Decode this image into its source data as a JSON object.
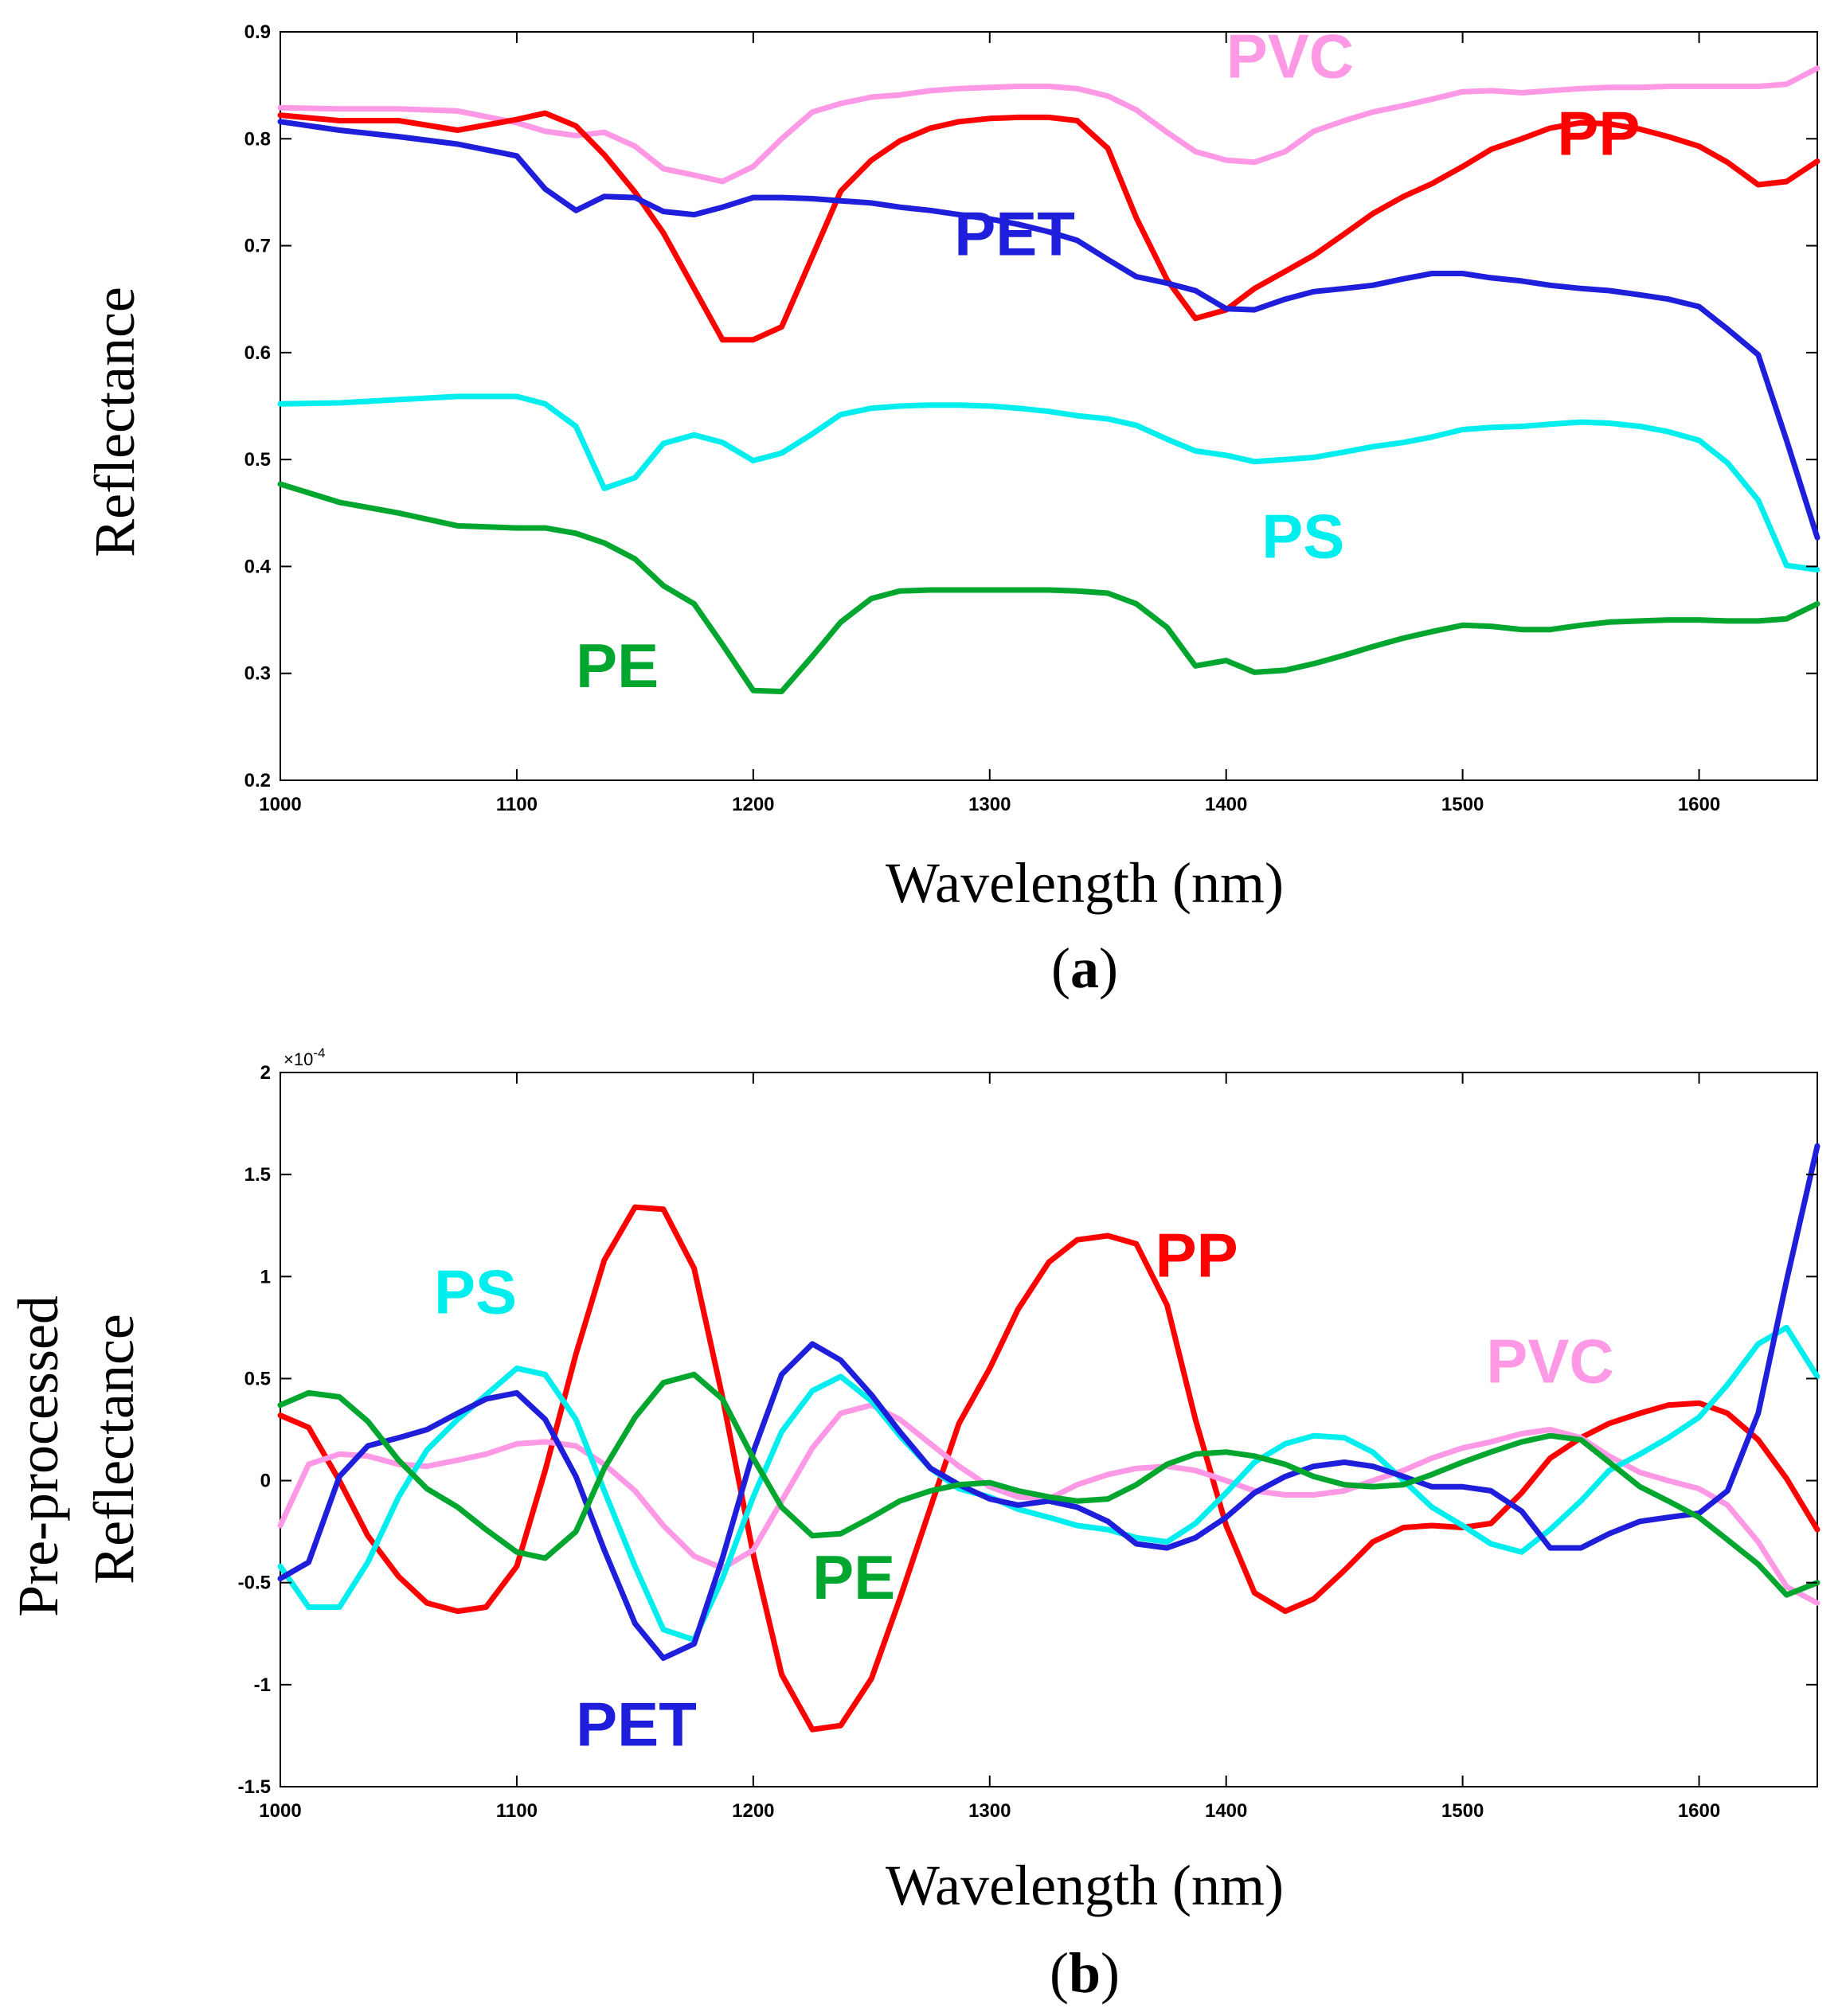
{
  "chart_data": [
    {
      "id": "a",
      "type": "line",
      "panel_label": "a",
      "xlabel": "Wavelength (nm)",
      "ylabel": "Reflectance",
      "xlim": [
        1000,
        1650
      ],
      "ylim": [
        0.2,
        0.9
      ],
      "xticks": [
        1000,
        1100,
        1200,
        1300,
        1400,
        1500,
        1600
      ],
      "yticks": [
        0.2,
        0.3,
        0.4,
        0.5,
        0.6,
        0.7,
        0.8,
        0.9
      ],
      "ytick_labels": [
        "0.2",
        "0.3",
        "0.4",
        "0.5",
        "0.6",
        "0.7",
        "0.8",
        "0.9"
      ],
      "x": [
        1000,
        1025,
        1050,
        1075,
        1100,
        1112,
        1125,
        1137,
        1150,
        1162,
        1175,
        1187,
        1200,
        1212,
        1225,
        1237,
        1250,
        1262,
        1275,
        1287,
        1300,
        1312,
        1325,
        1337,
        1350,
        1362,
        1375,
        1387,
        1400,
        1412,
        1425,
        1437,
        1450,
        1462,
        1475,
        1487,
        1500,
        1512,
        1525,
        1537,
        1550,
        1562,
        1575,
        1587,
        1600,
        1612,
        1625,
        1637,
        1650
      ],
      "series": [
        {
          "name": "PVC",
          "color": "#FF99E6",
          "label_pos": [
            1400,
            0.857
          ],
          "values": [
            0.829,
            0.828,
            0.828,
            0.826,
            0.815,
            0.807,
            0.803,
            0.806,
            0.793,
            0.772,
            0.766,
            0.76,
            0.774,
            0.8,
            0.825,
            0.833,
            0.839,
            0.841,
            0.845,
            0.847,
            0.848,
            0.849,
            0.849,
            0.847,
            0.84,
            0.827,
            0.806,
            0.788,
            0.78,
            0.778,
            0.788,
            0.807,
            0.817,
            0.825,
            0.831,
            0.837,
            0.844,
            0.845,
            0.843,
            0.845,
            0.847,
            0.848,
            0.848,
            0.849,
            0.849,
            0.849,
            0.849,
            0.851,
            0.866
          ]
        },
        {
          "name": "PP",
          "color": "#FF0000",
          "label_pos": [
            1540,
            0.785
          ],
          "values": [
            0.822,
            0.817,
            0.817,
            0.808,
            0.818,
            0.824,
            0.812,
            0.785,
            0.75,
            0.712,
            0.66,
            0.612,
            0.612,
            0.624,
            0.69,
            0.751,
            0.78,
            0.798,
            0.81,
            0.816,
            0.819,
            0.82,
            0.82,
            0.817,
            0.791,
            0.726,
            0.668,
            0.632,
            0.64,
            0.66,
            0.676,
            0.691,
            0.711,
            0.73,
            0.746,
            0.758,
            0.774,
            0.79,
            0.8,
            0.81,
            0.815,
            0.814,
            0.809,
            0.802,
            0.793,
            0.778,
            0.757,
            0.76,
            0.779
          ]
        },
        {
          "name": "PET",
          "color": "#1F1FDB",
          "label_pos": [
            1285,
            0.691
          ],
          "values": [
            0.816,
            0.808,
            0.802,
            0.795,
            0.784,
            0.753,
            0.733,
            0.746,
            0.745,
            0.732,
            0.729,
            0.736,
            0.745,
            0.745,
            0.744,
            0.742,
            0.74,
            0.736,
            0.733,
            0.729,
            0.725,
            0.72,
            0.713,
            0.705,
            0.687,
            0.671,
            0.665,
            0.658,
            0.641,
            0.64,
            0.65,
            0.657,
            0.66,
            0.663,
            0.669,
            0.674,
            0.674,
            0.67,
            0.667,
            0.663,
            0.66,
            0.658,
            0.654,
            0.65,
            0.643,
            0.622,
            0.598,
            0.518,
            0.427
          ]
        },
        {
          "name": "PS",
          "color": "#00EEEE",
          "label_pos": [
            1415,
            0.408
          ],
          "values": [
            0.552,
            0.553,
            0.556,
            0.559,
            0.559,
            0.552,
            0.531,
            0.473,
            0.483,
            0.515,
            0.523,
            0.516,
            0.499,
            0.506,
            0.524,
            0.542,
            0.548,
            0.55,
            0.551,
            0.551,
            0.55,
            0.548,
            0.545,
            0.541,
            0.538,
            0.532,
            0.519,
            0.508,
            0.504,
            0.498,
            0.5,
            0.502,
            0.507,
            0.512,
            0.516,
            0.521,
            0.528,
            0.53,
            0.531,
            0.533,
            0.535,
            0.534,
            0.531,
            0.526,
            0.518,
            0.497,
            0.462,
            0.401,
            0.397
          ]
        },
        {
          "name": "PE",
          "color": "#00A62E",
          "label_pos": [
            1125,
            0.287
          ],
          "values": [
            0.477,
            0.46,
            0.45,
            0.438,
            0.436,
            0.436,
            0.431,
            0.422,
            0.407,
            0.382,
            0.365,
            0.327,
            0.284,
            0.283,
            0.316,
            0.348,
            0.37,
            0.377,
            0.378,
            0.378,
            0.378,
            0.378,
            0.378,
            0.377,
            0.375,
            0.365,
            0.343,
            0.307,
            0.312,
            0.301,
            0.303,
            0.309,
            0.317,
            0.325,
            0.333,
            0.339,
            0.345,
            0.344,
            0.341,
            0.341,
            0.345,
            0.348,
            0.349,
            0.35,
            0.35,
            0.349,
            0.349,
            0.351,
            0.365
          ]
        }
      ]
    },
    {
      "id": "b",
      "type": "line",
      "panel_label": "b",
      "xlabel": "Wavelength (nm)",
      "ylabel_lines": [
        "Pre-processed",
        "Reflectance"
      ],
      "exponent": "×10",
      "exponent_power": "-4",
      "xlim": [
        1000,
        1650
      ],
      "ylim": [
        -1.5,
        2
      ],
      "xticks": [
        1000,
        1100,
        1200,
        1300,
        1400,
        1500,
        1600
      ],
      "yticks": [
        -1.5,
        -1,
        -0.5,
        0,
        0.5,
        1,
        1.5,
        2
      ],
      "ytick_labels": [
        "-1.5",
        "-1",
        "-0.5",
        "0",
        "0.5",
        "1",
        "1.5",
        "2"
      ],
      "x": [
        1000,
        1012,
        1025,
        1037,
        1050,
        1062,
        1075,
        1087,
        1100,
        1112,
        1125,
        1137,
        1150,
        1162,
        1175,
        1187,
        1200,
        1212,
        1225,
        1237,
        1250,
        1262,
        1275,
        1287,
        1300,
        1312,
        1325,
        1337,
        1350,
        1362,
        1375,
        1387,
        1400,
        1412,
        1425,
        1437,
        1450,
        1462,
        1475,
        1487,
        1500,
        1512,
        1525,
        1537,
        1550,
        1562,
        1575,
        1587,
        1600,
        1612,
        1625,
        1637,
        1650
      ],
      "series": [
        {
          "name": "PP",
          "color": "#FF0000",
          "label_pos": [
            1370,
            1.0
          ],
          "values": [
            0.32,
            0.26,
            0.0,
            -0.27,
            -0.47,
            -0.6,
            -0.64,
            -0.62,
            -0.42,
            0.05,
            0.62,
            1.08,
            1.34,
            1.33,
            1.04,
            0.41,
            -0.36,
            -0.95,
            -1.22,
            -1.2,
            -0.97,
            -0.58,
            -0.13,
            0.28,
            0.55,
            0.84,
            1.07,
            1.18,
            1.2,
            1.16,
            0.86,
            0.3,
            -0.22,
            -0.55,
            -0.64,
            -0.58,
            -0.44,
            -0.3,
            -0.23,
            -0.22,
            -0.23,
            -0.21,
            -0.06,
            0.11,
            0.21,
            0.28,
            0.33,
            0.37,
            0.38,
            0.33,
            0.2,
            0.01,
            -0.24
          ]
        },
        {
          "name": "PVC",
          "color": "#FF99E6",
          "label_pos": [
            1510,
            0.48
          ],
          "values": [
            -0.22,
            0.08,
            0.13,
            0.12,
            0.08,
            0.07,
            0.1,
            0.13,
            0.18,
            0.19,
            0.17,
            0.08,
            -0.05,
            -0.22,
            -0.37,
            -0.43,
            -0.34,
            -0.1,
            0.16,
            0.33,
            0.37,
            0.3,
            0.18,
            0.07,
            -0.03,
            -0.08,
            -0.09,
            -0.02,
            0.03,
            0.06,
            0.07,
            0.05,
            0.0,
            -0.05,
            -0.07,
            -0.07,
            -0.05,
            0.0,
            0.05,
            0.11,
            0.16,
            0.19,
            0.23,
            0.25,
            0.21,
            0.12,
            0.04,
            0.0,
            -0.04,
            -0.12,
            -0.3,
            -0.52,
            -0.6
          ]
        },
        {
          "name": "PS",
          "color": "#00EEEE",
          "label_pos": [
            1065,
            0.82
          ],
          "values": [
            -0.42,
            -0.62,
            -0.62,
            -0.4,
            -0.08,
            0.15,
            0.3,
            0.42,
            0.55,
            0.52,
            0.3,
            -0.05,
            -0.42,
            -0.73,
            -0.78,
            -0.48,
            -0.08,
            0.24,
            0.44,
            0.51,
            0.39,
            0.22,
            0.06,
            -0.04,
            -0.08,
            -0.14,
            -0.18,
            -0.22,
            -0.24,
            -0.28,
            -0.3,
            -0.21,
            -0.06,
            0.09,
            0.18,
            0.22,
            0.21,
            0.14,
            0.0,
            -0.13,
            -0.22,
            -0.31,
            -0.35,
            -0.24,
            -0.1,
            0.05,
            0.13,
            0.21,
            0.31,
            0.47,
            0.67,
            0.75,
            0.51
          ]
        },
        {
          "name": "PET",
          "color": "#1F1FDB",
          "label_pos": [
            1125,
            -1.3
          ],
          "values": [
            -0.48,
            -0.4,
            0.02,
            0.17,
            0.21,
            0.25,
            0.33,
            0.4,
            0.43,
            0.3,
            0.02,
            -0.34,
            -0.7,
            -0.87,
            -0.8,
            -0.38,
            0.14,
            0.52,
            0.67,
            0.59,
            0.42,
            0.24,
            0.06,
            -0.02,
            -0.09,
            -0.12,
            -0.1,
            -0.13,
            -0.2,
            -0.31,
            -0.33,
            -0.28,
            -0.18,
            -0.06,
            0.02,
            0.07,
            0.09,
            0.07,
            0.02,
            -0.03,
            -0.03,
            -0.05,
            -0.15,
            -0.33,
            -0.33,
            -0.26,
            -0.2,
            -0.18,
            -0.16,
            -0.05,
            0.33,
            0.98,
            1.64
          ]
        },
        {
          "name": "PE",
          "color": "#00A62E",
          "label_pos": [
            1225,
            -0.58
          ],
          "values": [
            0.37,
            0.43,
            0.41,
            0.29,
            0.1,
            -0.04,
            -0.13,
            -0.24,
            -0.35,
            -0.38,
            -0.25,
            0.06,
            0.31,
            0.48,
            0.52,
            0.4,
            0.11,
            -0.13,
            -0.27,
            -0.26,
            -0.18,
            -0.1,
            -0.05,
            -0.02,
            -0.01,
            -0.05,
            -0.08,
            -0.1,
            -0.09,
            -0.02,
            0.08,
            0.13,
            0.14,
            0.12,
            0.08,
            0.02,
            -0.02,
            -0.03,
            -0.02,
            0.03,
            0.09,
            0.14,
            0.19,
            0.22,
            0.2,
            0.09,
            -0.03,
            -0.1,
            -0.18,
            -0.29,
            -0.41,
            -0.56,
            -0.5
          ]
        }
      ]
    }
  ]
}
